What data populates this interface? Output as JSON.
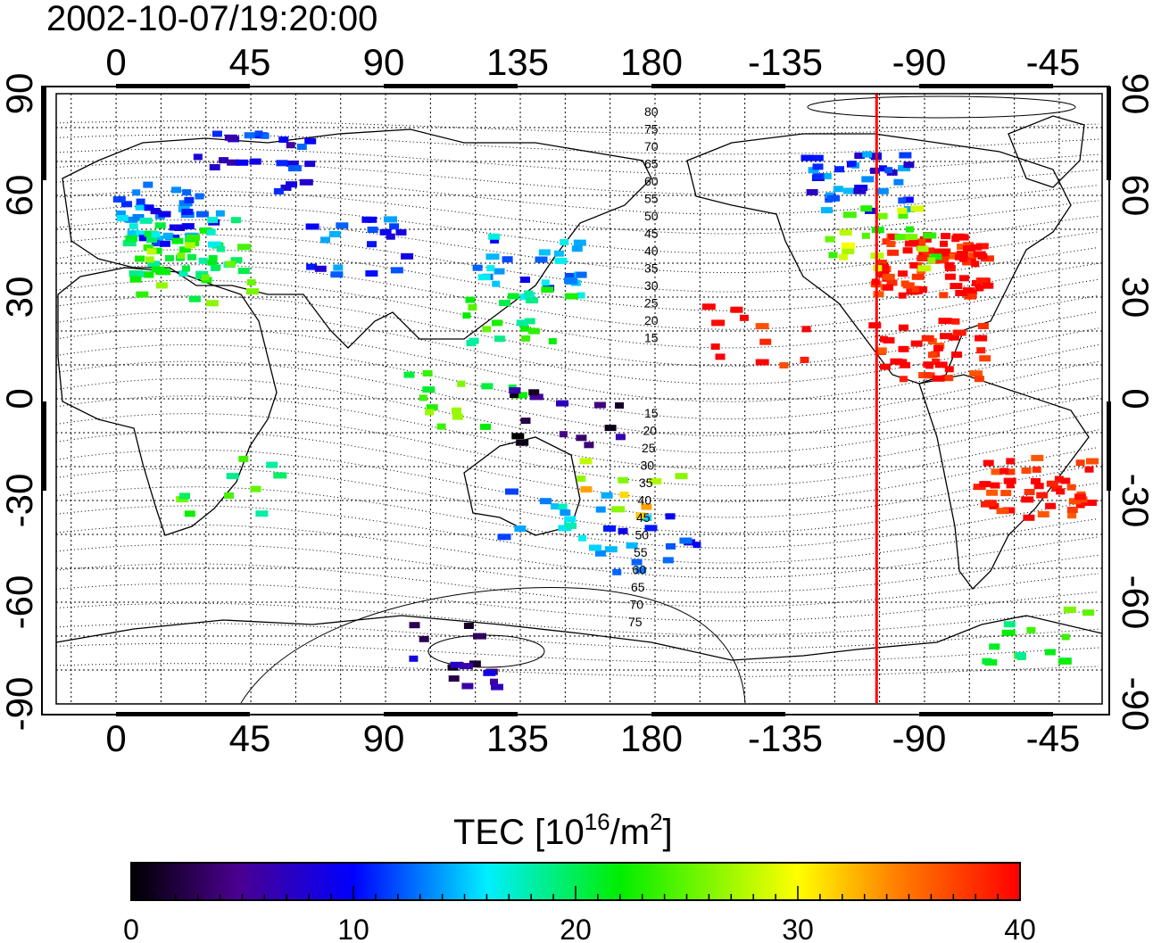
{
  "title": "2002-10-07/19:20:00",
  "x_axis": {
    "tick_labels": [
      "0",
      "45",
      "90",
      "135",
      "180",
      "-135",
      "-90",
      "-45"
    ]
  },
  "y_axis": {
    "tick_labels": [
      "90",
      "60",
      "30",
      "0",
      "-30",
      "-60",
      "-90"
    ]
  },
  "contour_labels": {
    "northern": [
      "80",
      "75",
      "70",
      "65",
      "60",
      "55",
      "50",
      "45",
      "40",
      "35",
      "30",
      "25",
      "20",
      "15"
    ],
    "southern": [
      "15",
      "20",
      "25",
      "30",
      "35",
      "40",
      "45",
      "50",
      "55",
      "60",
      "65",
      "70",
      "75"
    ]
  },
  "colorbar": {
    "title_prefix": "TEC  [10",
    "title_exp1": "16",
    "title_mid": "/m",
    "title_exp2": "2",
    "title_suffix": "]",
    "tick_labels": [
      "0",
      "10",
      "20",
      "30",
      "40"
    ],
    "range": [
      0,
      40
    ]
  },
  "colors": {
    "terminator_line": "#ff0000",
    "frame": "#000000"
  },
  "terminator_longitude": -111,
  "tec_clusters": [
    {
      "lon": 10,
      "lat": 55,
      "value": 12,
      "n": 40
    },
    {
      "lon": 15,
      "lat": 45,
      "value": 20,
      "n": 40
    },
    {
      "lon": 20,
      "lat": 38,
      "value": 24,
      "n": 20
    },
    {
      "lon": 40,
      "lat": 70,
      "value": 9,
      "n": 25
    },
    {
      "lon": 75,
      "lat": 45,
      "value": 11,
      "n": 20
    },
    {
      "lon": 130,
      "lat": 40,
      "value": 13,
      "n": 30
    },
    {
      "lon": 130,
      "lat": 25,
      "value": 22,
      "n": 20
    },
    {
      "lon": 110,
      "lat": 0,
      "value": 24,
      "n": 15
    },
    {
      "lon": 145,
      "lat": -5,
      "value": 3,
      "n": 15
    },
    {
      "lon": 140,
      "lat": -35,
      "value": 14,
      "n": 15
    },
    {
      "lon": 172,
      "lat": -42,
      "value": 12,
      "n": 15
    },
    {
      "lon": 165,
      "lat": -25,
      "value": 30,
      "n": 10
    },
    {
      "lon": -120,
      "lat": 65,
      "value": 11,
      "n": 40
    },
    {
      "lon": -95,
      "lat": 40,
      "value": 40,
      "n": 90
    },
    {
      "lon": -110,
      "lat": 48,
      "value": 26,
      "n": 25
    },
    {
      "lon": -95,
      "lat": 15,
      "value": 40,
      "n": 40
    },
    {
      "lon": -60,
      "lat": -25,
      "value": 40,
      "n": 45
    },
    {
      "lon": -60,
      "lat": -70,
      "value": 22,
      "n": 15
    },
    {
      "lon": 110,
      "lat": -75,
      "value": 5,
      "n": 15
    },
    {
      "lon": -150,
      "lat": 20,
      "value": 40,
      "n": 12
    },
    {
      "lon": 30,
      "lat": -25,
      "value": 22,
      "n": 10
    }
  ]
}
